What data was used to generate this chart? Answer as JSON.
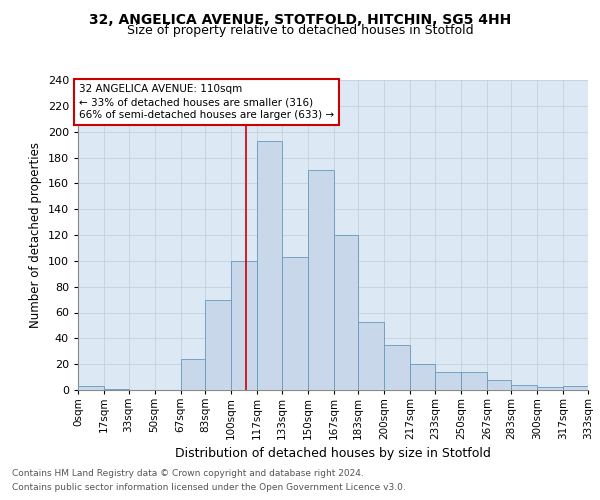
{
  "title1": "32, ANGELICA AVENUE, STOTFOLD, HITCHIN, SG5 4HH",
  "title2": "Size of property relative to detached houses in Stotfold",
  "xlabel": "Distribution of detached houses by size in Stotfold",
  "ylabel": "Number of detached properties",
  "annotation_line1": "32 ANGELICA AVENUE: 110sqm",
  "annotation_line2": "← 33% of detached houses are smaller (316)",
  "annotation_line3": "66% of semi-detached houses are larger (633) →",
  "property_size": 110,
  "bin_edges": [
    0,
    17,
    33,
    50,
    67,
    83,
    100,
    117,
    133,
    150,
    167,
    183,
    200,
    217,
    233,
    250,
    267,
    283,
    300,
    317,
    333
  ],
  "bin_counts": [
    3,
    1,
    0,
    0,
    24,
    70,
    100,
    193,
    103,
    170,
    120,
    53,
    35,
    20,
    14,
    14,
    8,
    4,
    2,
    3
  ],
  "bar_facecolor": "#c8d8ea",
  "bar_edgecolor": "#6699bb",
  "vline_color": "#cc0000",
  "vline_x": 110,
  "annotation_box_edgecolor": "#cc0000",
  "annotation_box_facecolor": "#ffffff",
  "grid_color": "#c0ccd8",
  "background_color": "#dce8f4",
  "tick_labels": [
    "0sqm",
    "17sqm",
    "33sqm",
    "50sqm",
    "67sqm",
    "83sqm",
    "100sqm",
    "117sqm",
    "133sqm",
    "150sqm",
    "167sqm",
    "183sqm",
    "200sqm",
    "217sqm",
    "233sqm",
    "250sqm",
    "267sqm",
    "283sqm",
    "300sqm",
    "317sqm",
    "333sqm"
  ],
  "ylim": [
    0,
    240
  ],
  "yticks": [
    0,
    20,
    40,
    60,
    80,
    100,
    120,
    140,
    160,
    180,
    200,
    220,
    240
  ],
  "footnote1": "Contains HM Land Registry data © Crown copyright and database right 2024.",
  "footnote2": "Contains public sector information licensed under the Open Government Licence v3.0."
}
